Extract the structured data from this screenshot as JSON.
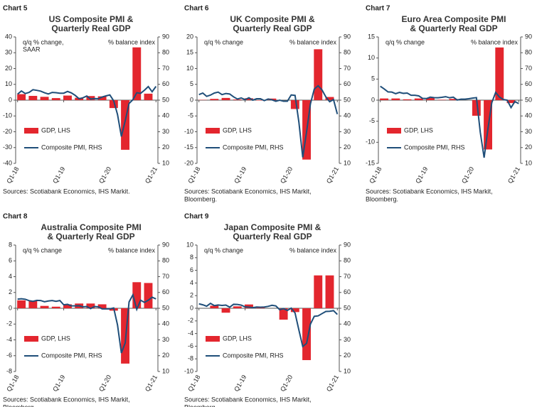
{
  "chart_data": [
    {
      "type": "bar",
      "label": "Chart 5",
      "title": [
        "US Composite PMI &",
        "Quarterly Real GDP"
      ],
      "ylabel": [
        "q/q % change,",
        "SAAR"
      ],
      "y2label": "% balance index",
      "categories": [
        "Q1-18",
        null,
        null,
        null,
        null,
        null,
        null,
        null,
        null,
        null,
        null,
        null,
        "Q1-19",
        null,
        null,
        null,
        null,
        null,
        null,
        null,
        null,
        null,
        null,
        null,
        "Q1-20",
        null,
        null,
        null,
        null,
        null,
        null,
        null,
        null,
        null,
        null,
        null,
        "Q1-21"
      ],
      "series": [
        {
          "name": "GDP, LHS",
          "type": "bar",
          "color": "#e3262e",
          "values": [
            null,
            3.8,
            null,
            null,
            2.7,
            null,
            null,
            2.1,
            null,
            null,
            1.3,
            null,
            null,
            2.9,
            null,
            null,
            1.5,
            null,
            null,
            2.6,
            null,
            null,
            2.4,
            null,
            null,
            -5,
            null,
            null,
            -31.4,
            null,
            null,
            33.4,
            null,
            null,
            4.1,
            null,
            null
          ]
        },
        {
          "name": "Composite PMI, RHS",
          "type": "line",
          "axis": "y2",
          "color": "#1f4e79",
          "values": [
            53.8,
            55.8,
            54.2,
            54.9,
            56.6,
            56.2,
            55.7,
            54.7,
            53.9,
            54.9,
            54.7,
            54.4,
            54.4,
            55.5,
            54.6,
            53,
            50.9,
            51.5,
            52.6,
            50.7,
            51,
            50.9,
            52,
            52.7,
            53.3,
            49.6,
            40.9,
            27,
            37,
            47.9,
            50.3,
            54.7,
            54.3,
            56.3,
            58.6,
            55.3,
            58.7
          ]
        }
      ],
      "ylim": [
        -40,
        40
      ],
      "yticks": [
        -40,
        -30,
        -20,
        -10,
        0,
        10,
        20,
        30,
        40
      ],
      "y2lim": [
        10,
        90
      ],
      "y2ticks": [
        10,
        20,
        30,
        40,
        50,
        60,
        70,
        80,
        90
      ],
      "source": [
        "Sources: Scotiabank Economics, IHS Markit."
      ]
    },
    {
      "type": "bar",
      "label": "Chart 6",
      "title": [
        "UK Composite PMI &",
        "Quarterly Real GDP"
      ],
      "ylabel": [
        "q/q % change"
      ],
      "y2label": "% balance index",
      "categories": [
        "Q1-18",
        null,
        null,
        null,
        null,
        null,
        null,
        null,
        null,
        null,
        null,
        null,
        "Q1-19",
        null,
        null,
        null,
        null,
        null,
        null,
        null,
        null,
        null,
        null,
        null,
        "Q1-20",
        null,
        null,
        null,
        null,
        null,
        null,
        null,
        null,
        null,
        null,
        null,
        "Q1-21"
      ],
      "series": [
        {
          "name": "GDP, LHS",
          "type": "bar",
          "color": "#e3262e",
          "values": [
            null,
            0.1,
            null,
            null,
            0.4,
            null,
            null,
            0.7,
            null,
            null,
            0.2,
            null,
            null,
            0.6,
            null,
            null,
            -0.1,
            null,
            null,
            0.5,
            null,
            null,
            0,
            null,
            null,
            -2.8,
            null,
            null,
            -18.8,
            null,
            null,
            16.1,
            null,
            null,
            1,
            null,
            null
          ]
        },
        {
          "name": "Composite PMI, RHS",
          "type": "line",
          "axis": "y2",
          "color": "#1f4e79",
          "values": [
            53.5,
            54.5,
            52.4,
            53.2,
            54.5,
            55.1,
            53.5,
            54.2,
            53.9,
            52.1,
            50.7,
            51.4,
            50.3,
            51.5,
            50,
            50.9,
            50.9,
            49.7,
            50.7,
            50.2,
            49.3,
            50,
            49.3,
            49.3,
            53.3,
            53,
            36,
            13.8,
            30,
            47.7,
            57,
            59.1,
            56.5,
            52.1,
            49,
            50.4,
            41.2
          ]
        }
      ],
      "ylim": [
        -20,
        20
      ],
      "yticks": [
        -20,
        -15,
        -10,
        -5,
        0,
        5,
        10,
        15,
        20
      ],
      "y2lim": [
        10,
        90
      ],
      "y2ticks": [
        10,
        20,
        30,
        40,
        50,
        60,
        70,
        80,
        90
      ],
      "source": [
        "Sources: Scotiabank Economics, IHS Markit,",
        "Bloomberg."
      ]
    },
    {
      "type": "bar",
      "label": "Chart 7",
      "title": [
        "Euro Area Composite PMI",
        "& Quarterly Real GDP"
      ],
      "ylabel": [
        "q/q % change"
      ],
      "y2label": "% balance index",
      "categories": [
        "Q1-18",
        null,
        null,
        null,
        null,
        null,
        null,
        null,
        null,
        null,
        null,
        null,
        "Q1-19",
        null,
        null,
        null,
        null,
        null,
        null,
        null,
        null,
        null,
        null,
        null,
        "Q1-20",
        null,
        null,
        null,
        null,
        null,
        null,
        null,
        null,
        null,
        null,
        null,
        "Q1-21"
      ],
      "series": [
        {
          "name": "GDP, LHS",
          "type": "bar",
          "color": "#e3262e",
          "values": [
            null,
            0.4,
            null,
            null,
            0.4,
            null,
            null,
            0.2,
            null,
            null,
            0.4,
            null,
            null,
            0.5,
            null,
            null,
            0.1,
            null,
            null,
            0.3,
            null,
            null,
            0,
            null,
            null,
            -3.7,
            null,
            null,
            -11.7,
            null,
            null,
            12.5,
            null,
            null,
            -0.7,
            null,
            null
          ]
        },
        {
          "name": "Composite PMI, RHS",
          "type": "line",
          "axis": "y2",
          "color": "#1f4e79",
          "values": [
            58.8,
            57.1,
            55.2,
            55.1,
            54.1,
            54.9,
            54.3,
            54.5,
            53.1,
            53.1,
            52.7,
            51.1,
            51,
            51.9,
            51.6,
            51.5,
            51.8,
            52.2,
            51.5,
            51.9,
            50.1,
            50.6,
            50.6,
            50.9,
            51.3,
            51.6,
            29.7,
            13.6,
            31.9,
            48.5,
            54.9,
            51.9,
            50.4,
            50,
            45.3,
            49.1,
            47.8
          ]
        }
      ],
      "ylim": [
        -15,
        15
      ],
      "yticks": [
        -15,
        -10,
        -5,
        0,
        5,
        10,
        15
      ],
      "y2lim": [
        10,
        90
      ],
      "y2ticks": [
        10,
        20,
        30,
        40,
        50,
        60,
        70,
        80,
        90
      ],
      "source": [
        "Sources: Scotiabank Economics, IHS Markit,",
        "Bloomberg."
      ]
    },
    {
      "type": "bar",
      "label": "Chart 8",
      "title": [
        "Australia Composite PMI",
        "& Quarterly Real GDP"
      ],
      "ylabel": [
        "q/q % change"
      ],
      "y2label": "% balance index",
      "categories": [
        "Q1-18",
        null,
        null,
        null,
        null,
        null,
        null,
        null,
        null,
        null,
        null,
        null,
        "Q1-19",
        null,
        null,
        null,
        null,
        null,
        null,
        null,
        null,
        null,
        null,
        null,
        "Q1-20",
        null,
        null,
        null,
        null,
        null,
        null,
        null,
        null,
        null,
        null,
        null,
        "Q1-21"
      ],
      "series": [
        {
          "name": "GDP, LHS",
          "type": "bar",
          "color": "#e3262e",
          "values": [
            null,
            1,
            null,
            null,
            0.9,
            null,
            null,
            0.3,
            null,
            null,
            0.2,
            null,
            null,
            0.5,
            null,
            null,
            0.6,
            null,
            null,
            0.6,
            null,
            null,
            0.5,
            null,
            null,
            -0.3,
            null,
            null,
            -7,
            null,
            null,
            3.3,
            null,
            null,
            3.2,
            null,
            null
          ]
        },
        {
          "name": "Composite PMI, RHS",
          "type": "line",
          "axis": "y2",
          "color": "#1f4e79",
          "values": [
            55.8,
            56,
            55.7,
            54.8,
            54.4,
            55,
            54.9,
            54.1,
            54.6,
            54.9,
            54.4,
            54.9,
            52.2,
            52.5,
            51.5,
            51.5,
            51.6,
            50.9,
            51.1,
            49.8,
            51.1,
            50.9,
            49.6,
            49.6,
            49.6,
            50.2,
            39.4,
            21.7,
            28.1,
            54,
            58.5,
            49.3,
            55.1,
            53.7,
            55.1,
            57,
            55.9
          ]
        }
      ],
      "ylim": [
        -8,
        8
      ],
      "yticks": [
        -8,
        -6,
        -4,
        -2,
        0,
        2,
        4,
        6,
        8
      ],
      "y2lim": [
        10,
        90
      ],
      "y2ticks": [
        10,
        20,
        30,
        40,
        50,
        60,
        70,
        80,
        90
      ],
      "source": [
        "Sources: Scotiabank Economics, IHS Markit,",
        "Bloomberg."
      ]
    },
    {
      "type": "bar",
      "label": "Chart 9",
      "title": [
        "Japan Composite PMI &",
        "Quarterly Real GDP"
      ],
      "ylabel": [
        "q/q % change"
      ],
      "y2label": "% balance index",
      "categories": [
        "Q1-18",
        null,
        null,
        null,
        null,
        null,
        null,
        null,
        null,
        null,
        null,
        null,
        "Q1-19",
        null,
        null,
        null,
        null,
        null,
        null,
        null,
        null,
        null,
        null,
        null,
        "Q1-20",
        null,
        null,
        null,
        null,
        null,
        null,
        null,
        null,
        null,
        null,
        null,
        "Q1-21"
      ],
      "series": [
        {
          "name": "GDP, LHS",
          "type": "bar",
          "color": "#e3262e",
          "values": [
            null,
            0,
            null,
            null,
            0.4,
            null,
            null,
            -0.7,
            null,
            null,
            0.3,
            null,
            null,
            0.6,
            null,
            null,
            0.2,
            null,
            null,
            0,
            null,
            null,
            -1.8,
            null,
            null,
            -0.6,
            null,
            null,
            -8.2,
            null,
            null,
            5.2,
            null,
            null,
            5.2,
            null,
            null
          ]
        },
        {
          "name": "Composite PMI, RHS",
          "type": "line",
          "axis": "y2",
          "color": "#1f4e79",
          "values": [
            52.8,
            52.2,
            51.3,
            53.1,
            51.7,
            52.1,
            51.8,
            52,
            50.7,
            52.5,
            52.4,
            52,
            50.9,
            50.7,
            50.4,
            50.8,
            50.7,
            50.8,
            51.2,
            51.9,
            51.5,
            49.1,
            49.8,
            48.6,
            50.1,
            47,
            36.2,
            25.8,
            27.8,
            40,
            44.9,
            45.2,
            46.6,
            48,
            48.1,
            48.5,
            46.1
          ]
        }
      ],
      "ylim": [
        -10,
        10
      ],
      "yticks": [
        -10,
        -8,
        -6,
        -4,
        -2,
        0,
        2,
        4,
        6,
        8,
        10
      ],
      "y2lim": [
        10,
        90
      ],
      "y2ticks": [
        10,
        20,
        30,
        40,
        50,
        60,
        70,
        80,
        90
      ],
      "source": [
        "Sources: Scotiabank Economics, IHS Markit,",
        "Bloomberg."
      ]
    }
  ]
}
